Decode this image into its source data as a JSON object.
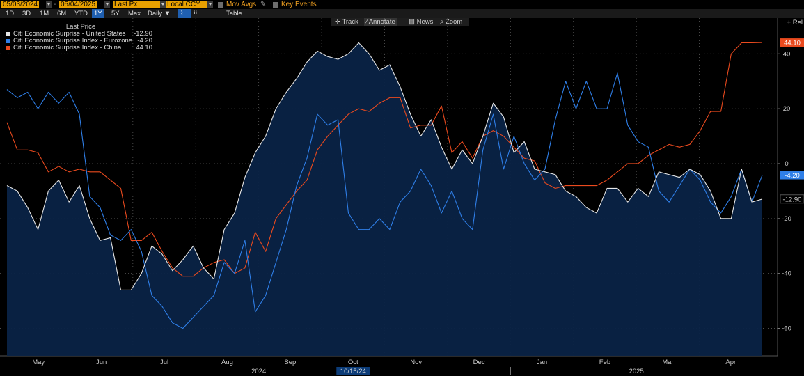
{
  "toolbar": {
    "start_date": "05/03/2024",
    "end_date": "05/04/2025",
    "price_field": "Last Px",
    "currency": "Local CCY",
    "mov_avgs": "Mov Avgs",
    "key_events": "Key Events",
    "periods": [
      "1D",
      "3D",
      "1M",
      "6M",
      "YTD",
      "1Y",
      "5Y",
      "Max"
    ],
    "active_period": "1Y",
    "frequency": "Daily",
    "table_label": "Table",
    "rel_label": "Rel",
    "chart_tools": [
      "Track",
      "Annotate",
      "News",
      "Zoom"
    ],
    "active_tool": "Annotate"
  },
  "colors": {
    "background": "#000000",
    "us": "#e6e6e6",
    "eurozone": "#2f7fe8",
    "china": "#ea4a1e",
    "area_fill": "#0a2346",
    "accent": "#e8a000"
  },
  "chart_data": {
    "type": "line",
    "legend_title": "Last Price",
    "legend_placement": "top-left",
    "x_ticks": [
      "May",
      "Jun",
      "Jul",
      "Aug",
      "Sep",
      "Oct",
      "Nov",
      "Dec",
      "Jan",
      "Feb",
      "Mar",
      "Apr"
    ],
    "year_labels": [
      "2024",
      "2025"
    ],
    "crosshair_date": "10/15/24",
    "y_ticks": [
      40,
      20,
      0,
      -20,
      -40,
      -60
    ],
    "ylim": [
      -70,
      53
    ],
    "grid": true,
    "series": [
      {
        "name": "Citi Economic Surprise - United States",
        "last_label": "-12.90",
        "color": "#e6e6e6",
        "area": true,
        "x": [
          0,
          5,
          10,
          15,
          20,
          25,
          30,
          35,
          40,
          45,
          50,
          55,
          60,
          65,
          70,
          75,
          80,
          85,
          90,
          95,
          100,
          105,
          110,
          115,
          120,
          125,
          130,
          135,
          140,
          145,
          150,
          155,
          160,
          165,
          170,
          175,
          180,
          185,
          190,
          195,
          200,
          205,
          210,
          215,
          220,
          225,
          230,
          235,
          240,
          245,
          250,
          255,
          260,
          265,
          270,
          275,
          280,
          285,
          290,
          295,
          300,
          305,
          310,
          315,
          320,
          325,
          330,
          335,
          340,
          345,
          350,
          355,
          360,
          365
        ],
        "values": [
          -8,
          -10,
          -16,
          -24,
          -10,
          -6,
          -14,
          -8,
          -20,
          -28,
          -27,
          -46,
          -46,
          -40,
          -30,
          -33,
          -39,
          -35,
          -30,
          -38,
          -42,
          -24,
          -18,
          -5,
          4,
          10,
          20,
          26,
          31,
          37,
          41,
          39,
          38,
          40,
          44,
          40,
          34,
          36,
          28,
          18,
          10,
          16,
          6,
          -2,
          5,
          0,
          10,
          22,
          17,
          4,
          8,
          -2,
          -3,
          -4,
          -10,
          -12,
          -16,
          -18,
          -9,
          -9,
          -14,
          -9,
          -12,
          -3,
          -4,
          -5,
          -2,
          -4,
          -10,
          -20,
          -20,
          -2,
          -14,
          -12.9
        ],
        "value": -12.9
      },
      {
        "name": "Citi Economic Surprise Index - Eurozone",
        "last_label": "-4.20",
        "color": "#2f7fe8",
        "area": false,
        "x": [
          0,
          5,
          10,
          15,
          20,
          25,
          30,
          35,
          40,
          45,
          50,
          55,
          60,
          65,
          70,
          75,
          80,
          85,
          90,
          95,
          100,
          105,
          110,
          115,
          120,
          125,
          130,
          135,
          140,
          145,
          150,
          155,
          160,
          165,
          170,
          175,
          180,
          185,
          190,
          195,
          200,
          205,
          210,
          215,
          220,
          225,
          230,
          235,
          240,
          245,
          250,
          255,
          260,
          265,
          270,
          275,
          280,
          285,
          290,
          295,
          300,
          305,
          310,
          315,
          320,
          325,
          330,
          335,
          340,
          345,
          350,
          355,
          360,
          365
        ],
        "values": [
          27,
          24,
          26,
          20,
          26,
          22,
          26,
          18,
          -12,
          -16,
          -26,
          -28,
          -24,
          -32,
          -48,
          -52,
          -58,
          -60,
          -56,
          -52,
          -48,
          -36,
          -40,
          -28,
          -54,
          -48,
          -36,
          -24,
          -8,
          2,
          18,
          14,
          16,
          -18,
          -24,
          -24,
          -20,
          -24,
          -14,
          -10,
          -2,
          -8,
          -18,
          -10,
          -20,
          -24,
          5,
          18,
          -2,
          10,
          0,
          -6,
          -2,
          16,
          30,
          20,
          30,
          20,
          20,
          33,
          14,
          8,
          6,
          -10,
          -14,
          -8,
          -2,
          -6,
          -14,
          -18,
          -12,
          -2,
          -14,
          -4.2
        ],
        "value": -4.2
      },
      {
        "name": "Citi Economic Surprise Index - China",
        "last_label": "44.10",
        "color": "#ea4a1e",
        "area": false,
        "x": [
          0,
          5,
          10,
          15,
          20,
          25,
          30,
          35,
          40,
          45,
          50,
          55,
          60,
          65,
          70,
          75,
          80,
          85,
          90,
          95,
          100,
          105,
          110,
          115,
          120,
          125,
          130,
          135,
          140,
          145,
          150,
          155,
          160,
          165,
          170,
          175,
          180,
          185,
          190,
          195,
          200,
          205,
          210,
          215,
          220,
          225,
          230,
          235,
          240,
          245,
          250,
          255,
          260,
          265,
          270,
          275,
          280,
          285,
          290,
          295,
          300,
          305,
          310,
          315,
          320,
          325,
          330,
          335,
          340,
          345,
          350,
          355,
          360,
          365
        ],
        "values": [
          15,
          5,
          5,
          4,
          -3,
          -1,
          -3,
          -2,
          -3,
          -3,
          -6,
          -9,
          -28,
          -28,
          -25,
          -32,
          -38,
          -41,
          -41,
          -38,
          -36,
          -35,
          -40,
          -38,
          -25,
          -32,
          -20,
          -15,
          -10,
          -6,
          5,
          10,
          14,
          18,
          20,
          19,
          22,
          24,
          24,
          13,
          14,
          14,
          21,
          4,
          8,
          2,
          10,
          12,
          10,
          6,
          2,
          1,
          -7,
          -9,
          -8,
          -8,
          -8,
          -8,
          -6,
          -3,
          0,
          0,
          3,
          5,
          7,
          6,
          7,
          12,
          19,
          19,
          40,
          44,
          44,
          44.1
        ],
        "value": 44.1
      }
    ]
  }
}
